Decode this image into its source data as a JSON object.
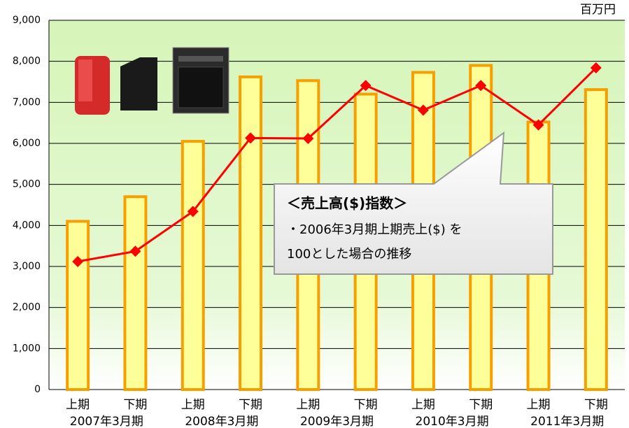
{
  "chart_data": {
    "type": "combo",
    "unit": "百万円",
    "categories": [
      "上期",
      "下期",
      "上期",
      "下期",
      "上期",
      "下期",
      "上期",
      "下期",
      "上期",
      "下期"
    ],
    "groups": [
      "2007年3月期",
      "2008年3月期",
      "2009年3月期",
      "2010年3月期",
      "2011年3月期"
    ],
    "series": [
      {
        "type": "bar",
        "color": "#ffff99",
        "values": [
          4100,
          4700,
          6050,
          7620,
          7530,
          7200,
          7730,
          7900,
          6520,
          7310
        ]
      },
      {
        "type": "line",
        "color": "#ff0000",
        "values": [
          3120,
          3370,
          4340,
          6130,
          6120,
          7410,
          6810,
          7410,
          6450,
          7840
        ]
      }
    ],
    "ylim": [
      0,
      9000
    ],
    "yticks": [
      0,
      {
        "value": 1000,
        "label": "1,000"
      },
      {
        "value": 2000,
        "label": "2,000"
      },
      {
        "value": 3000,
        "label": "3,000"
      },
      {
        "value": 4000,
        "label": "4,000"
      },
      {
        "value": 5000,
        "label": "5,000"
      },
      {
        "value": 6000,
        "label": "6,000"
      },
      {
        "value": 7000,
        "label": "7,000"
      },
      {
        "value": 8000,
        "label": "8,000"
      },
      {
        "value": 9000,
        "label": "9,000"
      }
    ],
    "grid": true,
    "annotation": {
      "title": "＜売上高($)指数＞",
      "lines": [
        "・2006年3月期上期売上($) を",
        "100とした場合の推移"
      ]
    }
  }
}
